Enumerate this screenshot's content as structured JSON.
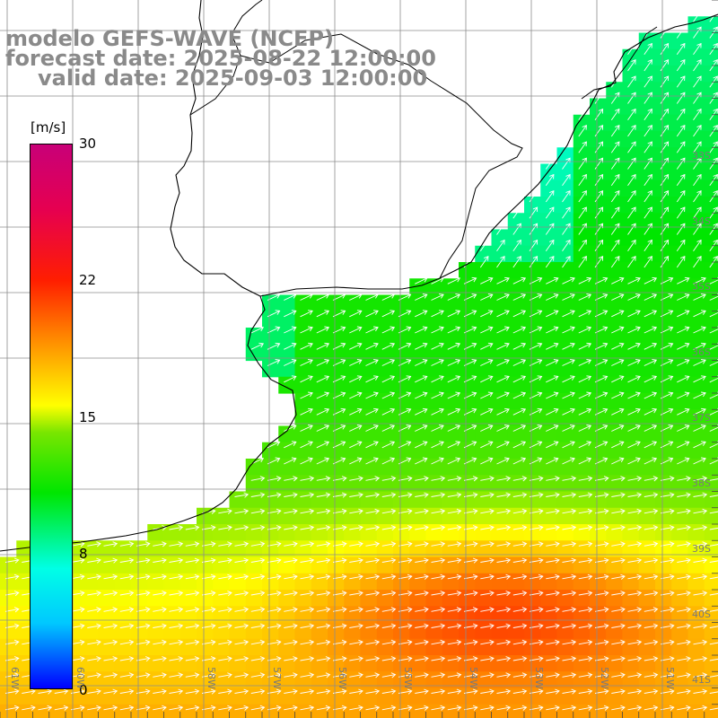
{
  "header": {
    "line1": "modelo GEFS-WAVE (NCEP)",
    "line2": "forecast date: 2025-08-22 12:00:00",
    "line3": "valid date: 2025-09-03 12:00:00"
  },
  "colorbar": {
    "unit": "[m/s]",
    "ticks": [
      "30",
      "22",
      "15",
      "8",
      "0"
    ],
    "colors": [
      "#0000ff",
      "#00c8ff",
      "#00ffe6",
      "#00e600",
      "#78e600",
      "#ffff00",
      "#ff9600",
      "#ff1e00",
      "#c80078"
    ]
  },
  "longitude_labels": [
    "61W",
    "60W",
    "58W",
    "57W",
    "56W",
    "55W",
    "54W",
    "53W",
    "52W",
    "51W"
  ],
  "latitude_labels": [
    "33S",
    "34S",
    "35S",
    "36S",
    "37S",
    "38S",
    "39S",
    "40S",
    "41S"
  ],
  "map_colors": {
    "land": "#ffffff",
    "grid": "#8c8c8c",
    "coast": "#000000",
    "arrow": "#ffffff"
  }
}
